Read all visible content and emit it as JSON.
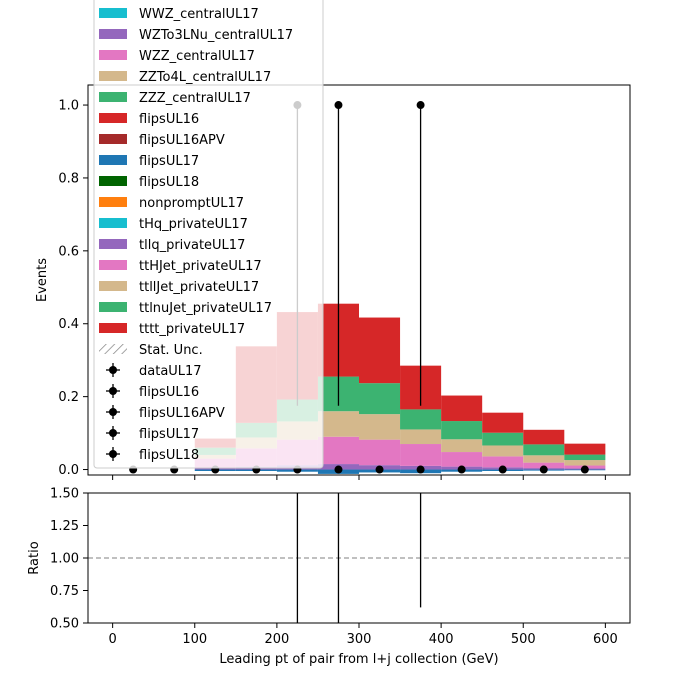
{
  "chart_data": [
    {
      "type": "bar",
      "stacked": true,
      "xlabel": "",
      "ylabel": "Events",
      "xlim": [
        -30,
        630
      ],
      "ylim": [
        -0.015,
        1.055
      ],
      "yticks": [
        0.0,
        0.2,
        0.4,
        0.6,
        0.8,
        1.0
      ],
      "ytick_labels": [
        "0.0",
        "0.2",
        "0.4",
        "0.6",
        "0.8",
        "1.0"
      ],
      "bin_edges": [
        0,
        50,
        100,
        150,
        200,
        250,
        300,
        350,
        400,
        450,
        500,
        550,
        600
      ],
      "legend_position": "upper-left",
      "series": [
        {
          "name": "flipsUL17",
          "color": "#1f77b4",
          "values": [
            0,
            0,
            -0.004,
            -0.004,
            -0.006,
            -0.012,
            -0.008,
            -0.01,
            -0.006,
            -0.004,
            -0.003,
            -0.002
          ]
        },
        {
          "name": "tllq_privateUL17",
          "color": "#9467bd",
          "values": [
            0,
            0,
            0.005,
            0.008,
            0.012,
            0.015,
            0.012,
            0.01,
            0.008,
            0.006,
            0.004,
            0.003
          ]
        },
        {
          "name": "ttHJet_privateUL17",
          "color": "#e377c2",
          "values": [
            0,
            0,
            0.025,
            0.05,
            0.07,
            0.075,
            0.07,
            0.06,
            0.04,
            0.03,
            0.015,
            0.008
          ]
        },
        {
          "name": "ttllJet_privateUL17",
          "color": "#d4b88c",
          "values": [
            0,
            0,
            0.01,
            0.03,
            0.05,
            0.07,
            0.07,
            0.04,
            0.035,
            0.03,
            0.02,
            0.015
          ]
        },
        {
          "name": "ttlnuJet_privateUL17",
          "color": "#3cb371",
          "values": [
            0,
            0,
            0.02,
            0.04,
            0.06,
            0.095,
            0.085,
            0.055,
            0.05,
            0.035,
            0.03,
            0.015
          ]
        },
        {
          "name": "tttt_privateUL17",
          "color": "#d62728",
          "values": [
            0,
            0,
            0.025,
            0.21,
            0.24,
            0.2,
            0.18,
            0.12,
            0.07,
            0.055,
            0.04,
            0.03
          ]
        }
      ],
      "legend": [
        {
          "label": "WWZ_centralUL17",
          "color": "#17becf",
          "kind": "patch"
        },
        {
          "label": "WZTo3LNu_centralUL17",
          "color": "#9467bd",
          "kind": "patch"
        },
        {
          "label": "WZZ_centralUL17",
          "color": "#e377c2",
          "kind": "patch"
        },
        {
          "label": "ZZTo4L_centralUL17",
          "color": "#d4b88c",
          "kind": "patch"
        },
        {
          "label": "ZZZ_centralUL17",
          "color": "#3cb371",
          "kind": "patch"
        },
        {
          "label": "flipsUL16",
          "color": "#d62728",
          "kind": "patch"
        },
        {
          "label": "flipsUL16APV",
          "color": "#a52a2a",
          "kind": "patch"
        },
        {
          "label": "flipsUL17",
          "color": "#1f77b4",
          "kind": "patch"
        },
        {
          "label": "flipsUL18",
          "color": "#006400",
          "kind": "patch"
        },
        {
          "label": "nonpromptUL17",
          "color": "#ff7f0e",
          "kind": "patch"
        },
        {
          "label": "tHq_privateUL17",
          "color": "#17becf",
          "kind": "patch"
        },
        {
          "label": "tllq_privateUL17",
          "color": "#9467bd",
          "kind": "patch"
        },
        {
          "label": "ttHJet_privateUL17",
          "color": "#e377c2",
          "kind": "patch"
        },
        {
          "label": "ttllJet_privateUL17",
          "color": "#d4b88c",
          "kind": "patch"
        },
        {
          "label": "ttlnuJet_privateUL17",
          "color": "#3cb371",
          "kind": "patch"
        },
        {
          "label": "tttt_privateUL17",
          "color": "#d62728",
          "kind": "patch"
        },
        {
          "label": "Stat. Unc.",
          "color": "#888888",
          "kind": "hatch"
        },
        {
          "label": "dataUL17",
          "color": "#000000",
          "kind": "errorbar"
        },
        {
          "label": "flipsUL16",
          "color": "#000000",
          "kind": "errorbar"
        },
        {
          "label": "flipsUL16APV",
          "color": "#000000",
          "kind": "errorbar"
        },
        {
          "label": "flipsUL17",
          "color": "#000000",
          "kind": "errorbar"
        },
        {
          "label": "flipsUL18",
          "color": "#000000",
          "kind": "errorbar"
        }
      ],
      "data_points": {
        "x": [
          25,
          75,
          125,
          175,
          225,
          275,
          325,
          375,
          425,
          475,
          525,
          575
        ],
        "y": [
          0,
          0,
          0,
          0,
          0,
          0,
          0,
          0,
          0,
          0,
          0,
          0
        ],
        "markers": [
          {
            "x": 225,
            "y": 1.0
          },
          {
            "x": 275,
            "y": 1.0
          },
          {
            "x": 375,
            "y": 1.0
          }
        ],
        "error_bars": [
          {
            "x": 225,
            "low": 0.175,
            "high": 1.0
          },
          {
            "x": 275,
            "low": 0.175,
            "high": 1.0
          },
          {
            "x": 375,
            "low": 0.175,
            "high": 1.0
          }
        ]
      }
    },
    {
      "type": "line",
      "xlabel": "Leading pt of pair from l+j collection (GeV)",
      "ylabel": "Ratio",
      "xlim": [
        -30,
        630
      ],
      "ylim": [
        0.5,
        1.5
      ],
      "xticks": [
        0,
        100,
        200,
        300,
        400,
        500,
        600
      ],
      "xtick_labels": [
        "0",
        "100",
        "200",
        "300",
        "400",
        "500",
        "600"
      ],
      "yticks": [
        0.5,
        0.75,
        1.0,
        1.25,
        1.5
      ],
      "ytick_labels": [
        "0.50",
        "0.75",
        "1.00",
        "1.25",
        "1.50"
      ],
      "reference_line": 1.0,
      "error_bars": [
        {
          "x": 225,
          "low": 0.5,
          "high": 1.5
        },
        {
          "x": 275,
          "low": 0.5,
          "high": 1.5
        },
        {
          "x": 375,
          "low": 0.62,
          "high": 1.5
        }
      ]
    }
  ]
}
